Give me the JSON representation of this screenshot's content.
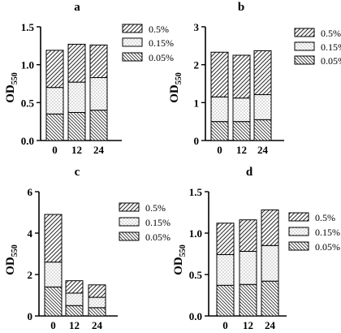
{
  "chart_data": [
    {
      "type": "bar",
      "stacked": true,
      "title": "a",
      "ylabel": "OD",
      "ylabel_sub": "550",
      "categories": [
        "0",
        "12",
        "24"
      ],
      "ylim": [
        0,
        1.5
      ],
      "yticks": [
        "0.0",
        "0.5",
        "1.0",
        "1.5"
      ],
      "series": [
        {
          "name": "0.05%",
          "values": [
            0.35,
            0.37,
            0.4
          ]
        },
        {
          "name": "0.15%",
          "values": [
            0.35,
            0.4,
            0.43
          ]
        },
        {
          "name": "0.5%",
          "values": [
            0.49,
            0.5,
            0.43
          ]
        }
      ],
      "legend": "right",
      "grid": false
    },
    {
      "type": "bar",
      "stacked": true,
      "title": "b",
      "ylabel": "OD",
      "ylabel_sub": "550",
      "categories": [
        "0",
        "12",
        "24"
      ],
      "ylim": [
        0,
        3
      ],
      "yticks": [
        "0",
        "1",
        "2",
        "3"
      ],
      "series": [
        {
          "name": "0.05%",
          "values": [
            0.5,
            0.5,
            0.55
          ]
        },
        {
          "name": "0.15%",
          "values": [
            0.65,
            0.62,
            0.66
          ]
        },
        {
          "name": "0.5%",
          "values": [
            1.18,
            1.13,
            1.16
          ]
        }
      ],
      "legend": "right",
      "grid": false
    },
    {
      "type": "bar",
      "stacked": true,
      "title": "c",
      "ylabel": "OD",
      "ylabel_sub": "550",
      "categories": [
        "0",
        "12",
        "24"
      ],
      "ylim": [
        0,
        6
      ],
      "yticks": [
        "0",
        "2",
        "4",
        "6"
      ],
      "series": [
        {
          "name": "0.05%",
          "values": [
            1.4,
            0.5,
            0.4
          ]
        },
        {
          "name": "0.15%",
          "values": [
            1.2,
            0.6,
            0.5
          ]
        },
        {
          "name": "0.5%",
          "values": [
            2.3,
            0.6,
            0.6
          ]
        }
      ],
      "legend": "right",
      "grid": false
    },
    {
      "type": "bar",
      "stacked": true,
      "title": "d",
      "ylabel": "OD",
      "ylabel_sub": "550",
      "categories": [
        "0",
        "12",
        "24"
      ],
      "ylim": [
        0,
        1.5
      ],
      "yticks": [
        "0.0",
        "0.5",
        "1.0",
        "1.5"
      ],
      "series": [
        {
          "name": "0.05%",
          "values": [
            0.37,
            0.38,
            0.42
          ]
        },
        {
          "name": "0.15%",
          "values": [
            0.37,
            0.4,
            0.43
          ]
        },
        {
          "name": "0.5%",
          "values": [
            0.38,
            0.38,
            0.43
          ]
        }
      ],
      "legend": "right",
      "grid": false
    }
  ]
}
